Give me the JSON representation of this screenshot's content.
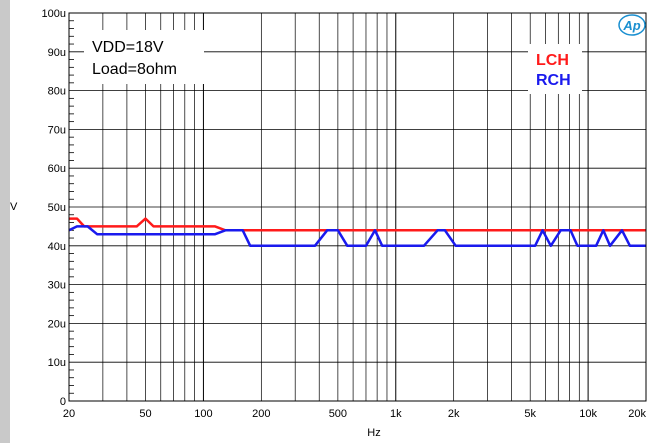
{
  "chart_data": {
    "type": "line",
    "xscale": "log",
    "xlim": [
      20,
      20000
    ],
    "ylim": [
      0,
      100
    ],
    "xlabel": "Hz",
    "ylabel": "V",
    "grid": true,
    "xticks": [
      {
        "value": 20,
        "label": "20"
      },
      {
        "value": 50,
        "label": "50"
      },
      {
        "value": 100,
        "label": "100"
      },
      {
        "value": 200,
        "label": "200"
      },
      {
        "value": 500,
        "label": "500"
      },
      {
        "value": 1000,
        "label": "1k"
      },
      {
        "value": 2000,
        "label": "2k"
      },
      {
        "value": 5000,
        "label": "5k"
      },
      {
        "value": 10000,
        "label": "10k"
      },
      {
        "value": 20000,
        "label": "20k"
      }
    ],
    "yticks": [
      {
        "value": 0,
        "label": "0"
      },
      {
        "value": 10,
        "label": "10u"
      },
      {
        "value": 20,
        "label": "20u"
      },
      {
        "value": 30,
        "label": "30u"
      },
      {
        "value": 40,
        "label": "40u"
      },
      {
        "value": 50,
        "label": "50u"
      },
      {
        "value": 60,
        "label": "60u"
      },
      {
        "value": 70,
        "label": "70u"
      },
      {
        "value": 80,
        "label": "80u"
      },
      {
        "value": 90,
        "label": "90u"
      },
      {
        "value": 100,
        "label": "100u"
      }
    ],
    "annotation": [
      "VDD=18V",
      "Load=8ohm"
    ],
    "legend_position": "top-right",
    "series": [
      {
        "name": "LCH",
        "color": "#ff1a1a",
        "points": [
          [
            20,
            47
          ],
          [
            22,
            47
          ],
          [
            24,
            45
          ],
          [
            30,
            45
          ],
          [
            45,
            45
          ],
          [
            50,
            47
          ],
          [
            55,
            45
          ],
          [
            100,
            45
          ],
          [
            115,
            45
          ],
          [
            130,
            44
          ],
          [
            20000,
            44
          ]
        ]
      },
      {
        "name": "RCH",
        "color": "#1a1aee",
        "points": [
          [
            20,
            44
          ],
          [
            22,
            45
          ],
          [
            25,
            45
          ],
          [
            28,
            43
          ],
          [
            60,
            43
          ],
          [
            115,
            43
          ],
          [
            130,
            44
          ],
          [
            160,
            44
          ],
          [
            175,
            40
          ],
          [
            380,
            40
          ],
          [
            440,
            44
          ],
          [
            500,
            44
          ],
          [
            560,
            40
          ],
          [
            700,
            40
          ],
          [
            780,
            44
          ],
          [
            850,
            40
          ],
          [
            1400,
            40
          ],
          [
            1650,
            44
          ],
          [
            1800,
            44
          ],
          [
            2050,
            40
          ],
          [
            5300,
            40
          ],
          [
            5800,
            44
          ],
          [
            6400,
            40
          ],
          [
            7200,
            44
          ],
          [
            8100,
            44
          ],
          [
            8800,
            40
          ],
          [
            11000,
            40
          ],
          [
            12000,
            44
          ],
          [
            13000,
            40
          ],
          [
            15000,
            44
          ],
          [
            16500,
            40
          ],
          [
            20000,
            40
          ]
        ]
      }
    ],
    "logo_text": "Ap"
  }
}
